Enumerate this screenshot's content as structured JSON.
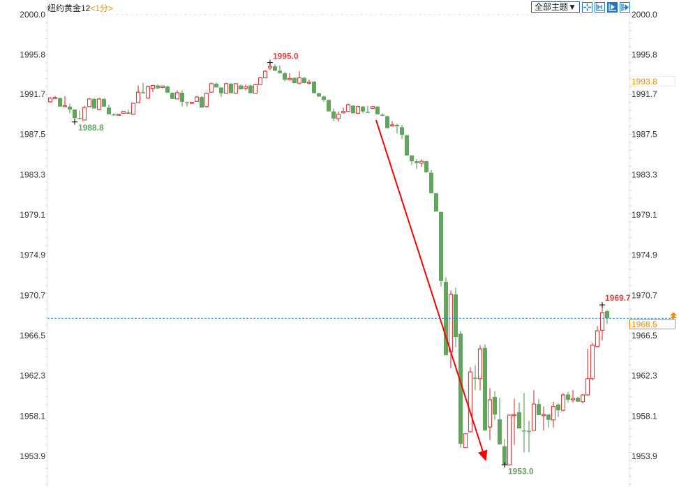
{
  "header": {
    "instrument": "纽约黄金12",
    "period": "<1分>",
    "theme_button": "全部主题▼",
    "tools": [
      {
        "icon": "crosshair-icon",
        "active": false
      },
      {
        "icon": "zoom-fit-icon",
        "active": false
      },
      {
        "icon": "play-icon",
        "active": true
      },
      {
        "icon": "move-right-icon",
        "active": false
      }
    ]
  },
  "price_boxes": {
    "reference": "1993.8",
    "current": "1968.5"
  },
  "chart_data": {
    "type": "candlestick",
    "title": "",
    "ylim": [
      1952.5,
      2000.0
    ],
    "yticks": [
      "2000.0",
      "1995.8",
      "1991.7",
      "1987.5",
      "1983.3",
      "1979.1",
      "1974.9",
      "1970.7",
      "1966.5",
      "1962.3",
      "1958.1",
      "1953.9"
    ],
    "current_price": 1968.3,
    "annotations": {
      "high_label": "1995.0",
      "high_candle": 45,
      "low_label_left": "1988.8",
      "low_left_candle": 5,
      "low_label": "1953.0",
      "low_candle": 93,
      "last_high_label": "1969.7",
      "last_high_candle": 113,
      "arrow": {
        "from": {
          "candle": 66.7,
          "price": 1989.0
        },
        "to": {
          "candle": 89.2,
          "price": 1953.4
        }
      }
    },
    "colors": {
      "up": "#e04040",
      "down": "#62a55d",
      "arrow": "#ff0000",
      "current_line": "#1e8cf0"
    },
    "ohlc": [
      [
        1990.9,
        1991.4,
        1990.8,
        1991.3
      ],
      [
        1991.3,
        1991.5,
        1991.2,
        1991.35
      ],
      [
        1991.3,
        1991.35,
        1990.4,
        1990.4
      ],
      [
        1990.45,
        1991.5,
        1990.4,
        1990.5
      ],
      [
        1990.4,
        1990.7,
        1989.7,
        1990.1
      ],
      [
        1990.1,
        1990.1,
        1988.8,
        1989.2
      ],
      [
        1989.2,
        1990.0,
        1989.1,
        1989.15
      ],
      [
        1989.0,
        1990.5,
        1989.0,
        1990.3
      ],
      [
        1990.4,
        1991.3,
        1990.4,
        1991.2
      ],
      [
        1991.2,
        1991.3,
        1990.2,
        1990.2
      ],
      [
        1990.1,
        1991.3,
        1990.0,
        1991.2
      ],
      [
        1991.2,
        1991.3,
        1990.4,
        1990.4
      ],
      [
        1990.3,
        1990.6,
        1989.6,
        1989.6
      ],
      [
        1989.6,
        1989.7,
        1989.45,
        1989.5
      ],
      [
        1989.5,
        1989.65,
        1989.45,
        1989.6
      ],
      [
        1989.7,
        1989.95,
        1989.65,
        1989.9
      ],
      [
        1989.8,
        1990.1,
        1989.6,
        1989.65
      ],
      [
        1989.6,
        1990.8,
        1989.6,
        1990.75
      ],
      [
        1990.8,
        1992.6,
        1990.8,
        1991.9
      ],
      [
        1991.9,
        1992.9,
        1991.8,
        1991.8
      ],
      [
        1991.3,
        1992.6,
        1991.2,
        1992.5
      ],
      [
        1992.3,
        1992.7,
        1991.9,
        1992.6
      ],
      [
        1992.6,
        1992.7,
        1992.3,
        1992.3
      ],
      [
        1992.4,
        1992.6,
        1992.3,
        1992.55
      ],
      [
        1992.5,
        1992.6,
        1991.85,
        1991.85
      ],
      [
        1991.85,
        1991.9,
        1991.2,
        1991.2
      ],
      [
        1991.2,
        1992.1,
        1991.2,
        1991.85
      ],
      [
        1991.85,
        1992.1,
        1990.4,
        1990.9
      ],
      [
        1990.85,
        1990.9,
        1990.4,
        1990.8
      ],
      [
        1990.8,
        1990.9,
        1990.75,
        1990.85
      ],
      [
        1990.95,
        1991.5,
        1990.9,
        1991.4
      ],
      [
        1991.4,
        1991.5,
        1990.3,
        1990.3
      ],
      [
        1990.4,
        1991.9,
        1990.3,
        1991.8
      ],
      [
        1991.9,
        1992.9,
        1991.9,
        1992.8
      ],
      [
        1992.8,
        1992.9,
        1992.4,
        1992.4
      ],
      [
        1992.4,
        1992.4,
        1991.4,
        1991.8
      ],
      [
        1991.8,
        1992.9,
        1991.8,
        1992.8
      ],
      [
        1992.8,
        1992.85,
        1991.8,
        1991.8
      ],
      [
        1991.8,
        1992.85,
        1991.8,
        1992.8
      ],
      [
        1992.6,
        1992.7,
        1992.2,
        1992.2
      ],
      [
        1992.3,
        1992.7,
        1992.1,
        1992.5
      ],
      [
        1992.6,
        1992.7,
        1991.8,
        1991.8
      ],
      [
        1991.8,
        1992.8,
        1991.8,
        1992.7
      ],
      [
        1992.7,
        1993.5,
        1992.7,
        1993.4
      ],
      [
        1993.4,
        1994.2,
        1993.4,
        1994.1
      ],
      [
        1994.45,
        1995.0,
        1994.2,
        1994.6
      ],
      [
        1994.6,
        1994.8,
        1994.1,
        1994.15
      ],
      [
        1994.15,
        1994.7,
        1993.85,
        1993.9
      ],
      [
        1993.9,
        1994.0,
        1993.05,
        1993.2
      ],
      [
        1993.2,
        1993.9,
        1993.15,
        1993.35
      ],
      [
        1993.4,
        1993.45,
        1992.85,
        1992.85
      ],
      [
        1992.85,
        1994.1,
        1992.7,
        1993.4
      ],
      [
        1993.4,
        1993.5,
        1992.85,
        1992.85
      ],
      [
        1992.9,
        1993.2,
        1992.7,
        1992.95
      ],
      [
        1993.0,
        1993.05,
        1991.8,
        1991.8
      ],
      [
        1991.8,
        1991.85,
        1991.45,
        1991.45
      ],
      [
        1991.45,
        1991.55,
        1990.9,
        1991.1
      ],
      [
        1991.1,
        1991.15,
        1989.9,
        1989.9
      ],
      [
        1989.9,
        1990.2,
        1988.9,
        1989.15
      ],
      [
        1989.15,
        1989.9,
        1988.85,
        1989.6
      ],
      [
        1989.75,
        1990.3,
        1989.7,
        1989.9
      ],
      [
        1989.9,
        1990.7,
        1989.85,
        1990.6
      ],
      [
        1990.5,
        1990.55,
        1989.7,
        1989.7
      ],
      [
        1989.7,
        1990.5,
        1989.65,
        1990.4
      ],
      [
        1990.4,
        1990.45,
        1989.7,
        1989.9
      ],
      [
        1989.85,
        1990.5,
        1989.8,
        1989.8
      ],
      [
        1990.2,
        1990.45,
        1990.15,
        1990.4
      ],
      [
        1990.4,
        1990.45,
        1989.6,
        1989.6
      ],
      [
        1989.55,
        1989.7,
        1989.4,
        1989.45
      ],
      [
        1989.4,
        1989.45,
        1988.15,
        1988.15
      ],
      [
        1988.45,
        1988.9,
        1988.4,
        1988.5
      ],
      [
        1988.5,
        1988.6,
        1987.6,
        1988.35
      ],
      [
        1988.25,
        1988.5,
        1987.0,
        1987.45
      ],
      [
        1987.4,
        1987.45,
        1985.3,
        1985.3
      ],
      [
        1985.3,
        1985.35,
        1984.3,
        1984.7
      ],
      [
        1984.7,
        1984.9,
        1983.9,
        1984.5
      ],
      [
        1984.5,
        1984.9,
        1984.1,
        1984.7
      ],
      [
        1984.7,
        1984.75,
        1983.5,
        1983.55
      ],
      [
        1983.5,
        1983.8,
        1981.35,
        1981.35
      ],
      [
        1981.35,
        1981.4,
        1979.45,
        1979.45
      ],
      [
        1979.4,
        1979.45,
        1971.6,
        1972.2
      ],
      [
        1972.1,
        1972.6,
        1964.45,
        1964.45
      ],
      [
        1964.8,
        1971.2,
        1963.1,
        1970.8
      ],
      [
        1970.8,
        1971.5,
        1965.3,
        1966.35
      ],
      [
        1966.7,
        1967.0,
        1954.8,
        1955.2
      ],
      [
        1954.8,
        1956.3,
        1954.75,
        1956.25
      ],
      [
        1956.45,
        1963.2,
        1956.4,
        1962.7
      ],
      [
        1962.1,
        1963.4,
        1960.8,
        1962.05
      ],
      [
        1962.0,
        1965.5,
        1960.8,
        1965.1
      ],
      [
        1965.2,
        1965.6,
        1956.6,
        1956.6
      ],
      [
        1956.95,
        1961.0,
        1955.6,
        1959.8
      ],
      [
        1960.1,
        1960.7,
        1957.7,
        1958.25
      ],
      [
        1957.75,
        1960.0,
        1955.1,
        1955.15
      ],
      [
        1954.95,
        1955.7,
        1953.0,
        1953.0
      ],
      [
        1953.0,
        1958.25,
        1953.0,
        1958.2
      ],
      [
        1958.2,
        1959.9,
        1955.1,
        1958.25
      ],
      [
        1958.5,
        1959.5,
        1956.8,
        1956.8
      ],
      [
        1956.6,
        1960.5,
        1954.3,
        1956.55
      ],
      [
        1956.55,
        1957.6,
        1954.3,
        1956.5
      ],
      [
        1956.6,
        1960.8,
        1956.55,
        1959.35
      ],
      [
        1959.35,
        1959.9,
        1958.2,
        1958.2
      ],
      [
        1958.2,
        1959.1,
        1956.6,
        1958.25
      ],
      [
        1958.25,
        1958.3,
        1956.9,
        1957.7
      ],
      [
        1957.7,
        1959.6,
        1956.9,
        1959.1
      ],
      [
        1959.3,
        1959.4,
        1958.0,
        1958.7
      ],
      [
        1958.7,
        1960.5,
        1958.6,
        1960.3
      ],
      [
        1960.35,
        1960.6,
        1959.5,
        1959.8
      ],
      [
        1959.8,
        1960.8,
        1959.5,
        1959.95
      ],
      [
        1960.0,
        1960.1,
        1959.6,
        1959.6
      ],
      [
        1959.6,
        1960.4,
        1959.4,
        1960.3
      ],
      [
        1960.3,
        1965.1,
        1960.2,
        1962.0
      ],
      [
        1962.0,
        1965.7,
        1961.8,
        1965.5
      ],
      [
        1965.35,
        1967.5,
        1965.3,
        1967.0
      ],
      [
        1967.05,
        1969.7,
        1966.0,
        1968.9
      ],
      [
        1969.05,
        1969.15,
        1967.7,
        1968.3
      ]
    ]
  }
}
